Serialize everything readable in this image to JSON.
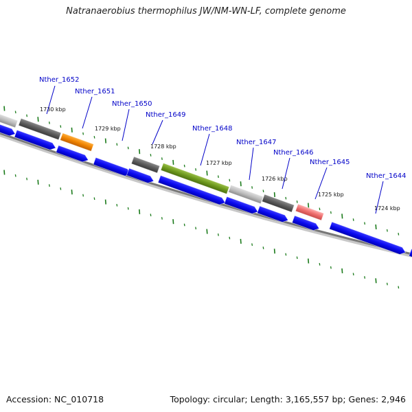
{
  "title": "Natranaerobius thermophilus JW/NM-WN-LF, complete genome",
  "footer": {
    "accession": "Accession: NC_010718",
    "summary": "Topology: circular; Length: 3,165,557 bp; Genes: 2,946"
  },
  "colors": {
    "cds": "#0a0aef",
    "tick": "#1a7a1a",
    "backbone": "#777777",
    "label": "#0000c8",
    "orange": "#f08400",
    "olive": "#6e9a1e",
    "pink": "#ee6e6e",
    "dark_gray": "#5c5c5c",
    "light_gray": "#bdbdbd"
  },
  "kbp_ticks": [
    "1730 kbp",
    "1729 kbp",
    "1728 kbp",
    "1727 kbp",
    "1726 kbp",
    "1725 kbp",
    "1724 kbp"
  ],
  "gene_labels": [
    "Nther_1652",
    "Nther_1651",
    "Nther_1650",
    "Nther_1649",
    "Nther_1648",
    "Nther_1647",
    "Nther_1646",
    "Nther_1645",
    "Nther_1644"
  ]
}
